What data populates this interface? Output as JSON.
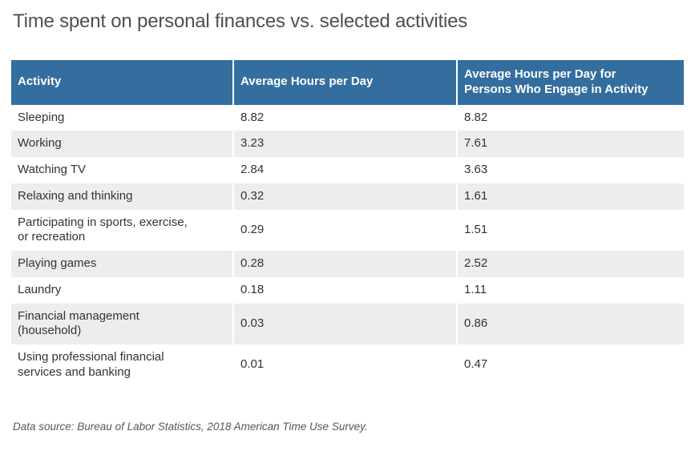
{
  "colors": {
    "header_bg": "#336e9e",
    "header_text": "#ffffff",
    "row_alt_bg": "#ededed",
    "body_text": "#333333",
    "title_text": "#4f4f4f",
    "source_text": "#575757"
  },
  "chart_data": {
    "type": "table",
    "title": "Time spent on personal finances vs. selected activities",
    "columns": [
      "Activity",
      "Average Hours per Day",
      "Average Hours per Day for\nPersons Who Engage in Activity"
    ],
    "rows": [
      [
        "Sleeping",
        "8.82",
        "8.82"
      ],
      [
        "Working",
        "3.23",
        "7.61"
      ],
      [
        "Watching TV",
        "2.84",
        "3.63"
      ],
      [
        "Relaxing and thinking",
        "0.32",
        "1.61"
      ],
      [
        "Participating in sports, exercise,\nor recreation",
        "0.29",
        "1.51"
      ],
      [
        "Playing games",
        "0.28",
        "2.52"
      ],
      [
        "Laundry",
        "0.18",
        "1.11"
      ],
      [
        "Financial management\n(household)",
        "0.03",
        "0.86"
      ],
      [
        "Using professional financial\nservices and banking",
        "0.01",
        "0.47"
      ]
    ],
    "source_note": "Data source: Bureau of Labor Statistics, 2018 American Time Use Survey."
  }
}
